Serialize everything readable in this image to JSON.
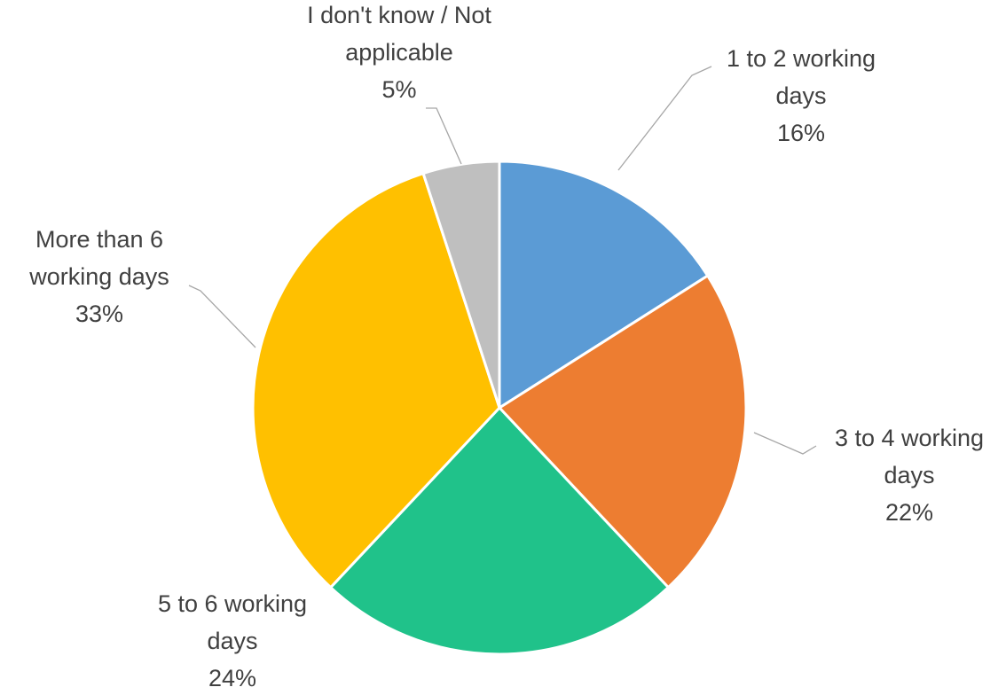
{
  "chart_data": {
    "type": "pie",
    "slices": [
      {
        "category_lines": [
          "1 to 2 working",
          "days"
        ],
        "value": 16,
        "value_label": "16%",
        "color": "#5b9bd5"
      },
      {
        "category_lines": [
          "3 to 4 working",
          "days"
        ],
        "value": 22,
        "value_label": "22%",
        "color": "#ed7d31"
      },
      {
        "category_lines": [
          "5 to 6 working",
          "days"
        ],
        "value": 24,
        "value_label": "24%",
        "color": "#20c28a"
      },
      {
        "category_lines": [
          "More than 6",
          "working days"
        ],
        "value": 33,
        "value_label": "33%",
        "color": "#ffc000"
      },
      {
        "category_lines": [
          "I don't know / Not",
          "applicable"
        ],
        "value": 5,
        "value_label": "5%",
        "color": "#bfbfbf"
      }
    ],
    "start_angle": "12 o'clock",
    "direction": "clockwise",
    "legend": "none",
    "data_labels": "outside with leader lines"
  }
}
